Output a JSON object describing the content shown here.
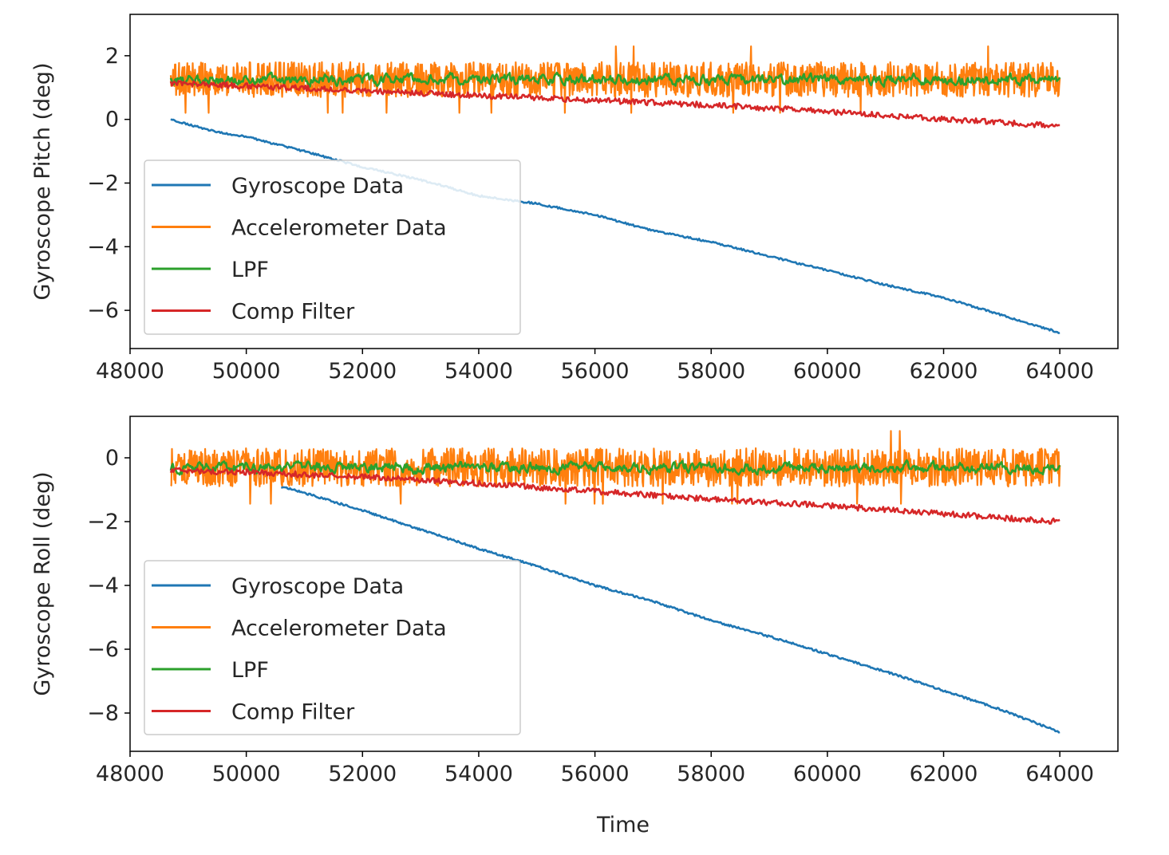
{
  "figure": {
    "xlabel": "Time"
  },
  "legend_entries": [
    "Gyroscope Data",
    "Accelerometer Data",
    "LPF",
    "Comp Filter"
  ],
  "colors": {
    "gyro": "#1f77b4",
    "accel": "#ff7f0e",
    "lpf": "#2ca02c",
    "comp": "#d62728",
    "axes": "#000000",
    "legend_border": "#cccccc"
  },
  "chart_data": [
    {
      "type": "line",
      "title": "",
      "xlabel": "",
      "ylabel": "Gyroscope Pitch (deg)",
      "xlim": [
        48000,
        65000
      ],
      "ylim": [
        -7.2,
        3.3
      ],
      "xticks": [
        "48000",
        "50000",
        "52000",
        "54000",
        "56000",
        "58000",
        "60000",
        "62000",
        "64000"
      ],
      "xtick_values": [
        48000,
        50000,
        52000,
        54000,
        56000,
        58000,
        60000,
        62000,
        64000
      ],
      "yticks": [
        "2",
        "0",
        "−2",
        "−4",
        "−6"
      ],
      "ytick_values": [
        2,
        0,
        -2,
        -4,
        -6
      ],
      "legend_position": "center-left",
      "series": [
        {
          "name": "Gyroscope Data",
          "x": [
            48700,
            49500,
            50000,
            51000,
            52000,
            53000,
            54000,
            55000,
            56000,
            57000,
            58000,
            59000,
            60000,
            61000,
            62000,
            63000,
            64000
          ],
          "y": [
            0.0,
            -0.4,
            -0.55,
            -1.0,
            -1.5,
            -1.9,
            -2.4,
            -2.65,
            -3.0,
            -3.5,
            -3.85,
            -4.3,
            -4.75,
            -5.2,
            -5.6,
            -6.15,
            -6.7
          ]
        },
        {
          "name": "Accelerometer Data",
          "x_range": [
            48700,
            64000
          ],
          "center": 1.25,
          "noise_amplitude": 0.55,
          "max": 2.85
        },
        {
          "name": "LPF",
          "x_range": [
            48700,
            64000
          ],
          "center": 1.25,
          "noise_amplitude": 0.12
        },
        {
          "name": "Comp Filter",
          "x": [
            48700,
            50000,
            52000,
            54000,
            56000,
            58000,
            60000,
            62000,
            64000
          ],
          "y": [
            1.15,
            1.05,
            0.9,
            0.75,
            0.6,
            0.45,
            0.25,
            0.0,
            -0.2
          ]
        }
      ]
    },
    {
      "type": "line",
      "title": "",
      "xlabel": "Time",
      "ylabel": "Gyroscope Roll (deg)",
      "xlim": [
        48000,
        65000
      ],
      "ylim": [
        -9.2,
        1.3
      ],
      "xticks": [
        "48000",
        "50000",
        "52000",
        "54000",
        "56000",
        "58000",
        "60000",
        "62000",
        "64000"
      ],
      "xtick_values": [
        48000,
        50000,
        52000,
        54000,
        56000,
        58000,
        60000,
        62000,
        64000
      ],
      "yticks": [
        "0",
        "−2",
        "−4",
        "−6",
        "−8"
      ],
      "ytick_values": [
        0,
        -2,
        -4,
        -6,
        -8
      ],
      "legend_position": "center-left",
      "series": [
        {
          "name": "Gyroscope Data",
          "x": [
            50600,
            51000,
            52000,
            53000,
            54000,
            55000,
            56000,
            57000,
            58000,
            59000,
            60000,
            61000,
            62000,
            63000,
            64000
          ],
          "y": [
            -0.9,
            -1.1,
            -1.65,
            -2.25,
            -2.85,
            -3.4,
            -4.0,
            -4.5,
            -5.1,
            -5.6,
            -6.15,
            -6.7,
            -7.3,
            -7.9,
            -8.6
          ]
        },
        {
          "name": "Accelerometer Data",
          "x_range": [
            48700,
            64000
          ],
          "center": -0.3,
          "noise_amplitude": 0.6,
          "max": 0.8
        },
        {
          "name": "LPF",
          "x_range": [
            48700,
            64000
          ],
          "center": -0.3,
          "noise_amplitude": 0.12
        },
        {
          "name": "Comp Filter",
          "x": [
            48700,
            50000,
            52000,
            54000,
            56000,
            58000,
            60000,
            62000,
            64000
          ],
          "y": [
            -0.4,
            -0.45,
            -0.6,
            -0.8,
            -1.05,
            -1.3,
            -1.5,
            -1.75,
            -2.0
          ]
        }
      ]
    }
  ]
}
